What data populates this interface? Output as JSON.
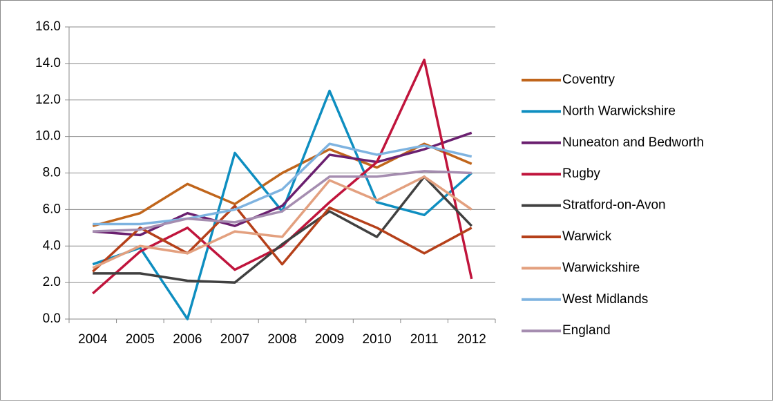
{
  "chart_data": {
    "type": "line",
    "categories": [
      "2004",
      "2005",
      "2006",
      "2007",
      "2008",
      "2009",
      "2010",
      "2011",
      "2012"
    ],
    "series": [
      {
        "name": "Coventry",
        "color": "#c0651b",
        "values": [
          5.1,
          5.8,
          7.4,
          6.3,
          8.0,
          9.3,
          8.3,
          9.6,
          8.5
        ]
      },
      {
        "name": "North Warwickshire",
        "color": "#0e8ec0",
        "values": [
          3.0,
          3.9,
          0.0,
          9.1,
          5.9,
          12.5,
          6.4,
          5.7,
          8.0
        ]
      },
      {
        "name": "Nuneaton and Bedworth",
        "color": "#6a1f6f",
        "values": [
          4.8,
          4.6,
          5.8,
          5.1,
          6.2,
          9.0,
          8.6,
          9.3,
          10.2
        ]
      },
      {
        "name": "Rugby",
        "color": "#c0143c",
        "values": [
          1.4,
          3.7,
          5.0,
          2.7,
          4.0,
          6.4,
          8.6,
          14.2,
          2.2
        ]
      },
      {
        "name": "Stratford-on-Avon",
        "color": "#404040",
        "values": [
          2.5,
          2.5,
          2.1,
          2.0,
          4.1,
          5.9,
          4.5,
          7.8,
          5.1
        ]
      },
      {
        "name": "Warwick",
        "color": "#b5401a",
        "values": [
          2.6,
          5.0,
          3.6,
          6.2,
          3.0,
          6.1,
          5.0,
          3.6,
          5.0
        ]
      },
      {
        "name": "Warwickshire",
        "color": "#e3a07f",
        "values": [
          2.8,
          4.0,
          3.6,
          4.8,
          4.5,
          7.6,
          6.5,
          7.8,
          6.0
        ]
      },
      {
        "name": "West Midlands",
        "color": "#7eb3e0",
        "values": [
          5.2,
          5.2,
          5.5,
          6.0,
          7.1,
          9.6,
          9.0,
          9.5,
          8.9
        ]
      },
      {
        "name": "England",
        "color": "#a58db0",
        "values": [
          4.8,
          4.9,
          5.5,
          5.3,
          5.9,
          7.8,
          7.8,
          8.1,
          8.0
        ]
      }
    ],
    "ylim": [
      0,
      16
    ],
    "yticks": [
      {
        "value": 0,
        "label": "0.0"
      },
      {
        "value": 2,
        "label": "2.0"
      },
      {
        "value": 4,
        "label": "4.0"
      },
      {
        "value": 6,
        "label": "6.0"
      },
      {
        "value": 8,
        "label": "8.0"
      },
      {
        "value": 10,
        "label": "10.0"
      },
      {
        "value": 12,
        "label": "12.0"
      },
      {
        "value": 14,
        "label": "14.0"
      },
      {
        "value": 16,
        "label": "16.0"
      }
    ],
    "grid": true,
    "legend": "right"
  }
}
